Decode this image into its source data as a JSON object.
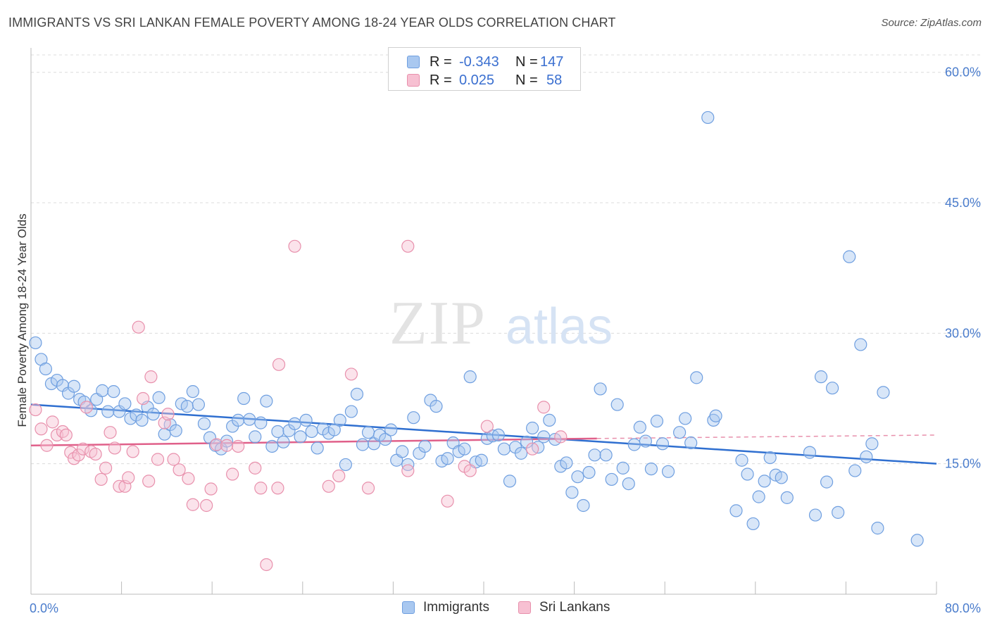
{
  "title": "IMMIGRANTS VS SRI LANKAN FEMALE POVERTY AMONG 18-24 YEAR OLDS CORRELATION CHART",
  "source": "Source: ZipAtlas.com",
  "watermark": {
    "zip": "ZIP",
    "atlas": "atlas"
  },
  "legend_top": {
    "rows": [
      {
        "r_label": "R =",
        "r_value": "-0.343",
        "n_label": "N =",
        "n_value": "147",
        "color": "#a9c8f0",
        "border": "#6f9fe0"
      },
      {
        "r_label": "R =",
        "r_value": "0.025",
        "n_label": "N =",
        "n_value": "58",
        "color": "#f7c0d2",
        "border": "#e890ac"
      }
    ]
  },
  "legend_bottom": [
    {
      "label": "Immigrants",
      "color": "#a9c8f0",
      "border": "#6f9fe0"
    },
    {
      "label": "Sri Lankans",
      "color": "#f7c0d2",
      "border": "#e890ac"
    }
  ],
  "chart_data": {
    "type": "scatter",
    "title": "IMMIGRANTS VS SRI LANKAN FEMALE POVERTY AMONG 18-24 YEAR OLDS CORRELATION CHART",
    "xlabel": "",
    "ylabel": "Female Poverty Among 18-24 Year Olds",
    "xlim": [
      0,
      80
    ],
    "ylim": [
      0,
      62
    ],
    "x_tick_labels": [
      "0.0%",
      "80.0%"
    ],
    "y_ticks": [
      15,
      30,
      45,
      60
    ],
    "y_tick_labels": [
      "15.0%",
      "30.0%",
      "45.0%",
      "60.0%"
    ],
    "grid": true,
    "legend": "top-center",
    "series": [
      {
        "name": "Immigrants",
        "color": "#7aa7e6",
        "trend": {
          "x": [
            0,
            80
          ],
          "y": [
            21.8,
            15.0
          ]
        },
        "points": [
          [
            0.4,
            28.9
          ],
          [
            0.9,
            27.0
          ],
          [
            1.3,
            25.9
          ],
          [
            1.8,
            24.2
          ],
          [
            2.3,
            24.6
          ],
          [
            2.8,
            24.0
          ],
          [
            3.3,
            23.1
          ],
          [
            3.8,
            23.9
          ],
          [
            4.3,
            22.4
          ],
          [
            4.7,
            22.1
          ],
          [
            5.3,
            21.1
          ],
          [
            5.8,
            22.4
          ],
          [
            6.3,
            23.4
          ],
          [
            6.8,
            21.0
          ],
          [
            7.3,
            23.3
          ],
          [
            7.8,
            21.0
          ],
          [
            8.3,
            21.9
          ],
          [
            8.8,
            20.2
          ],
          [
            9.3,
            20.6
          ],
          [
            9.8,
            20.0
          ],
          [
            10.3,
            21.5
          ],
          [
            10.8,
            20.7
          ],
          [
            11.3,
            22.6
          ],
          [
            11.8,
            18.4
          ],
          [
            12.3,
            19.5
          ],
          [
            12.8,
            18.8
          ],
          [
            13.3,
            21.9
          ],
          [
            13.8,
            21.6
          ],
          [
            14.3,
            23.3
          ],
          [
            14.8,
            21.8
          ],
          [
            15.3,
            19.6
          ],
          [
            15.8,
            18.0
          ],
          [
            16.3,
            17.1
          ],
          [
            16.8,
            16.7
          ],
          [
            17.3,
            17.6
          ],
          [
            17.8,
            19.3
          ],
          [
            18.3,
            20.0
          ],
          [
            18.8,
            22.5
          ],
          [
            19.3,
            20.1
          ],
          [
            19.8,
            18.1
          ],
          [
            20.3,
            19.7
          ],
          [
            20.8,
            22.2
          ],
          [
            21.3,
            17.0
          ],
          [
            21.8,
            18.7
          ],
          [
            22.3,
            17.5
          ],
          [
            22.8,
            18.8
          ],
          [
            23.3,
            19.6
          ],
          [
            23.8,
            18.1
          ],
          [
            24.3,
            20.0
          ],
          [
            24.8,
            18.7
          ],
          [
            25.3,
            16.8
          ],
          [
            25.8,
            19.0
          ],
          [
            26.3,
            18.5
          ],
          [
            26.8,
            18.9
          ],
          [
            27.3,
            20.0
          ],
          [
            27.8,
            14.9
          ],
          [
            28.3,
            21.0
          ],
          [
            28.8,
            23.0
          ],
          [
            29.3,
            17.2
          ],
          [
            29.8,
            18.6
          ],
          [
            30.3,
            17.3
          ],
          [
            30.8,
            18.3
          ],
          [
            31.3,
            17.8
          ],
          [
            31.8,
            18.9
          ],
          [
            32.3,
            15.4
          ],
          [
            32.8,
            16.4
          ],
          [
            33.3,
            14.9
          ],
          [
            33.8,
            20.3
          ],
          [
            34.3,
            16.2
          ],
          [
            34.8,
            17.0
          ],
          [
            35.3,
            22.3
          ],
          [
            35.8,
            21.6
          ],
          [
            36.3,
            15.3
          ],
          [
            36.8,
            15.6
          ],
          [
            37.3,
            17.4
          ],
          [
            37.8,
            16.4
          ],
          [
            38.3,
            16.7
          ],
          [
            38.8,
            25.0
          ],
          [
            39.3,
            15.2
          ],
          [
            39.8,
            15.4
          ],
          [
            40.3,
            17.9
          ],
          [
            40.8,
            18.2
          ],
          [
            41.3,
            18.3
          ],
          [
            41.8,
            16.7
          ],
          [
            42.3,
            13.0
          ],
          [
            42.8,
            16.9
          ],
          [
            43.3,
            16.2
          ],
          [
            43.8,
            17.5
          ],
          [
            44.3,
            19.1
          ],
          [
            44.8,
            16.9
          ],
          [
            45.3,
            18.1
          ],
          [
            45.8,
            20.0
          ],
          [
            46.3,
            17.8
          ],
          [
            46.8,
            14.7
          ],
          [
            47.3,
            15.1
          ],
          [
            47.8,
            11.7
          ],
          [
            48.3,
            13.5
          ],
          [
            48.8,
            10.2
          ],
          [
            49.3,
            14.0
          ],
          [
            49.8,
            16.0
          ],
          [
            50.3,
            23.6
          ],
          [
            50.8,
            16.0
          ],
          [
            51.3,
            13.2
          ],
          [
            51.8,
            21.8
          ],
          [
            52.3,
            14.5
          ],
          [
            52.8,
            12.7
          ],
          [
            53.3,
            17.2
          ],
          [
            53.8,
            19.2
          ],
          [
            54.3,
            17.6
          ],
          [
            54.8,
            14.4
          ],
          [
            55.3,
            19.9
          ],
          [
            55.8,
            17.3
          ],
          [
            56.3,
            14.1
          ],
          [
            57.3,
            18.6
          ],
          [
            57.8,
            20.2
          ],
          [
            58.3,
            17.4
          ],
          [
            58.8,
            24.9
          ],
          [
            59.8,
            54.8
          ],
          [
            60.3,
            20.0
          ],
          [
            60.5,
            20.5
          ],
          [
            62.3,
            9.6
          ],
          [
            62.8,
            15.4
          ],
          [
            63.3,
            13.8
          ],
          [
            63.8,
            8.1
          ],
          [
            64.3,
            11.2
          ],
          [
            64.8,
            13.0
          ],
          [
            65.3,
            15.7
          ],
          [
            65.8,
            13.7
          ],
          [
            66.3,
            13.4
          ],
          [
            66.8,
            11.1
          ],
          [
            68.8,
            16.3
          ],
          [
            69.3,
            9.1
          ],
          [
            69.8,
            25.0
          ],
          [
            70.3,
            12.9
          ],
          [
            70.8,
            23.7
          ],
          [
            71.3,
            9.4
          ],
          [
            72.3,
            38.8
          ],
          [
            72.8,
            14.2
          ],
          [
            73.3,
            28.7
          ],
          [
            73.8,
            15.8
          ],
          [
            74.3,
            17.3
          ],
          [
            74.8,
            7.6
          ],
          [
            75.3,
            23.2
          ],
          [
            78.3,
            6.2
          ]
        ]
      },
      {
        "name": "Sri Lankans",
        "color": "#f0a3bd",
        "trend": {
          "x": [
            0,
            50
          ],
          "y": [
            17.1,
            17.9
          ]
        },
        "trend_ext": {
          "x": [
            50,
            80
          ],
          "y": [
            17.9,
            18.3
          ]
        },
        "points": [
          [
            0.4,
            21.2
          ],
          [
            0.9,
            19.0
          ],
          [
            1.4,
            17.1
          ],
          [
            1.9,
            19.8
          ],
          [
            2.3,
            18.3
          ],
          [
            2.8,
            18.7
          ],
          [
            3.1,
            18.3
          ],
          [
            3.5,
            16.3
          ],
          [
            3.8,
            15.6
          ],
          [
            4.2,
            16.0
          ],
          [
            4.6,
            16.7
          ],
          [
            4.9,
            21.5
          ],
          [
            5.3,
            16.4
          ],
          [
            5.7,
            16.1
          ],
          [
            6.2,
            13.2
          ],
          [
            6.6,
            14.5
          ],
          [
            7.0,
            18.6
          ],
          [
            7.4,
            16.8
          ],
          [
            7.8,
            12.4
          ],
          [
            8.3,
            12.4
          ],
          [
            8.6,
            13.4
          ],
          [
            9.0,
            16.4
          ],
          [
            9.5,
            30.7
          ],
          [
            9.9,
            22.5
          ],
          [
            10.4,
            13.0
          ],
          [
            10.6,
            25.0
          ],
          [
            11.2,
            15.5
          ],
          [
            11.8,
            19.7
          ],
          [
            12.1,
            20.7
          ],
          [
            12.6,
            15.5
          ],
          [
            13.1,
            14.3
          ],
          [
            13.9,
            13.3
          ],
          [
            14.3,
            10.3
          ],
          [
            15.5,
            10.2
          ],
          [
            15.9,
            12.1
          ],
          [
            16.4,
            17.2
          ],
          [
            17.3,
            17.1
          ],
          [
            17.8,
            13.8
          ],
          [
            18.3,
            17.0
          ],
          [
            19.8,
            14.5
          ],
          [
            20.3,
            12.2
          ],
          [
            20.8,
            3.4
          ],
          [
            21.8,
            12.2
          ],
          [
            21.9,
            26.4
          ],
          [
            23.3,
            40.0
          ],
          [
            26.3,
            12.4
          ],
          [
            27.2,
            13.6
          ],
          [
            28.3,
            25.3
          ],
          [
            29.8,
            12.2
          ],
          [
            33.3,
            40.0
          ],
          [
            33.3,
            14.2
          ],
          [
            36.8,
            10.7
          ],
          [
            38.3,
            14.7
          ],
          [
            38.8,
            14.2
          ],
          [
            40.3,
            19.3
          ],
          [
            44.3,
            16.7
          ],
          [
            45.3,
            21.5
          ],
          [
            46.8,
            18.1
          ]
        ]
      }
    ]
  }
}
